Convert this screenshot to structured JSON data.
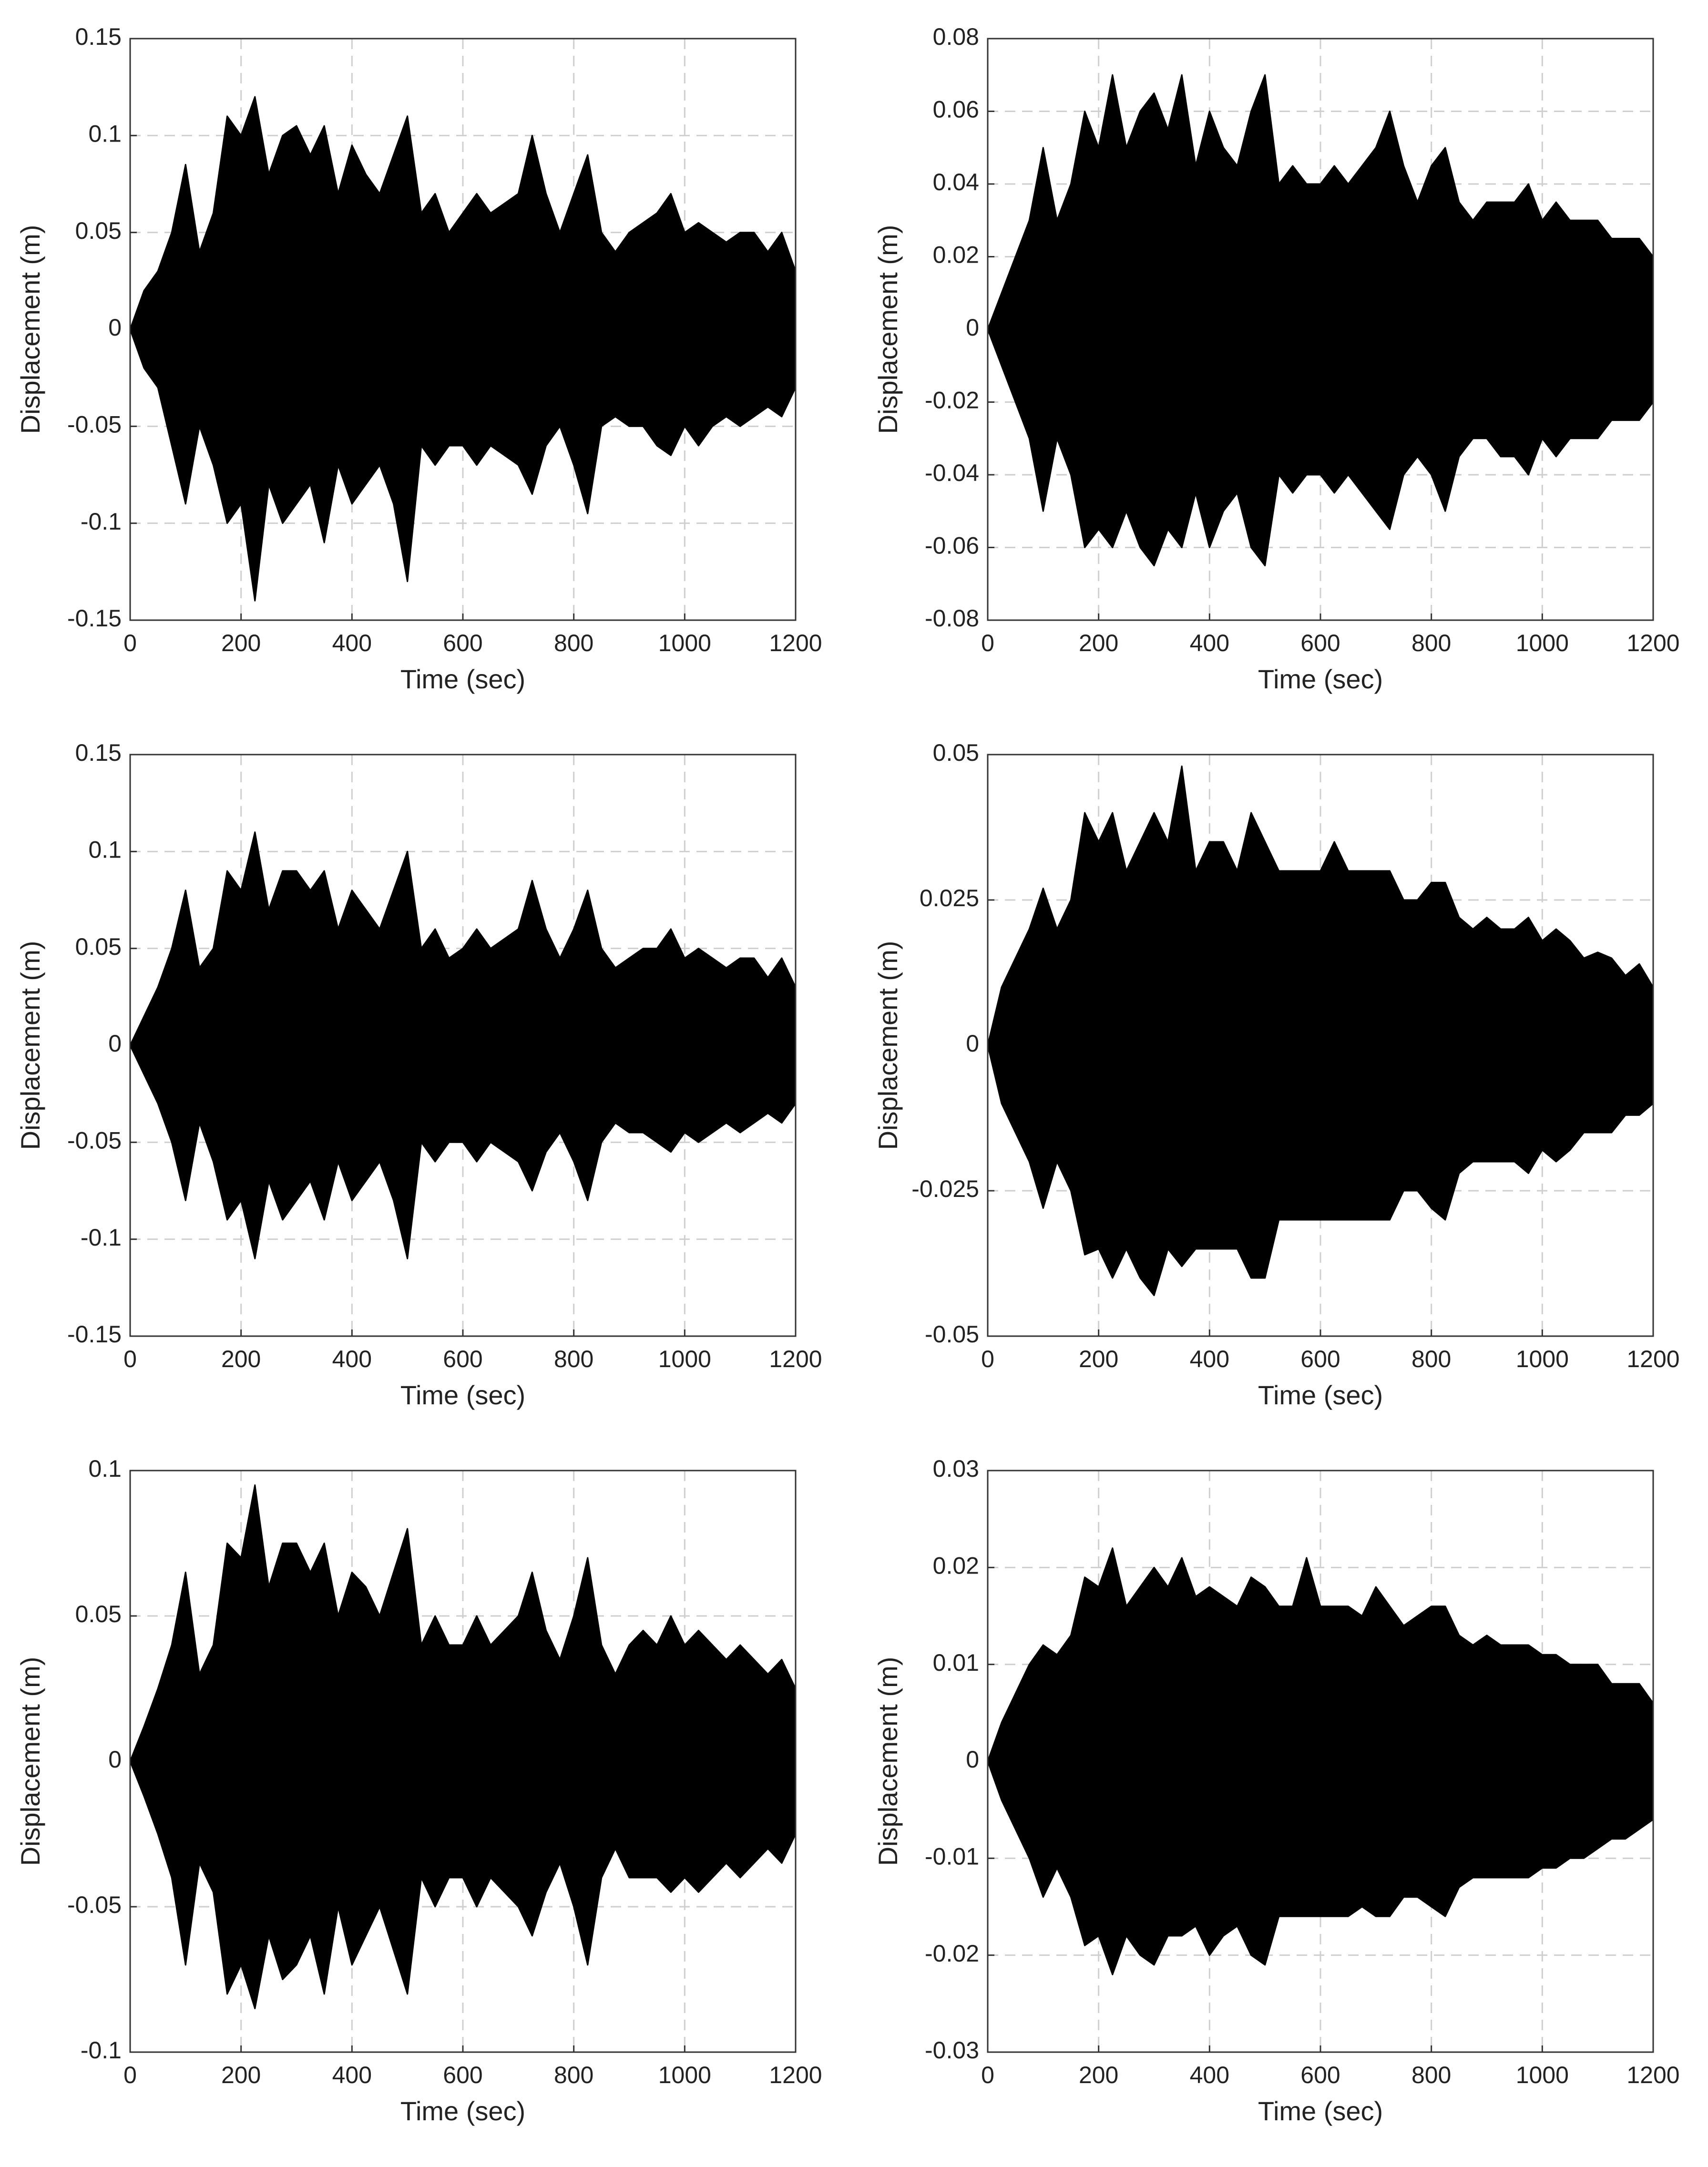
{
  "chart_data": [
    {
      "type": "area",
      "xlabel": "Time (sec)",
      "ylabel": "Displacement (m)",
      "grid": true,
      "xlim": [
        0,
        1200
      ],
      "xticks": [
        0,
        200,
        400,
        600,
        800,
        1000,
        1200
      ],
      "ylim": [
        -0.15,
        0.15
      ],
      "yticks": [
        -0.15,
        -0.1,
        -0.05,
        0,
        0.05,
        0.1,
        0.15
      ],
      "x": [
        0,
        25,
        50,
        75,
        100,
        125,
        150,
        175,
        200,
        225,
        250,
        275,
        300,
        325,
        350,
        375,
        400,
        425,
        450,
        475,
        500,
        525,
        550,
        575,
        600,
        625,
        650,
        675,
        700,
        725,
        750,
        775,
        800,
        825,
        850,
        875,
        900,
        925,
        950,
        975,
        1000,
        1025,
        1050,
        1075,
        1100,
        1125,
        1150,
        1175,
        1200
      ],
      "series": [
        {
          "color": "#000000",
          "values": [
            0,
            0.02,
            0.03,
            0.05,
            0.085,
            0.04,
            0.06,
            0.11,
            0.1,
            0.12,
            0.08,
            0.1,
            0.105,
            0.09,
            0.105,
            0.07,
            0.095,
            0.08,
            0.07,
            0.09,
            0.11,
            0.06,
            0.07,
            0.05,
            0.06,
            0.07,
            0.06,
            0.065,
            0.07,
            0.1,
            0.07,
            0.05,
            0.07,
            0.09,
            0.05,
            0.04,
            0.05,
            0.055,
            0.06,
            0.07,
            0.05,
            0.055,
            0.05,
            0.045,
            0.05,
            0.05,
            0.04,
            0.05,
            0.03
          ]
        },
        {
          "color": "#000000",
          "values": [
            0,
            -0.02,
            -0.03,
            -0.06,
            -0.09,
            -0.05,
            -0.07,
            -0.1,
            -0.09,
            -0.14,
            -0.08,
            -0.1,
            -0.09,
            -0.08,
            -0.11,
            -0.07,
            -0.09,
            -0.08,
            -0.07,
            -0.09,
            -0.13,
            -0.06,
            -0.07,
            -0.06,
            -0.06,
            -0.07,
            -0.06,
            -0.065,
            -0.07,
            -0.085,
            -0.06,
            -0.05,
            -0.07,
            -0.095,
            -0.05,
            -0.045,
            -0.05,
            -0.05,
            -0.06,
            -0.065,
            -0.05,
            -0.06,
            -0.05,
            -0.045,
            -0.05,
            -0.045,
            -0.04,
            -0.045,
            -0.03
          ]
        }
      ]
    },
    {
      "type": "area",
      "xlabel": "Time (sec)",
      "ylabel": "Displacement (m)",
      "grid": true,
      "xlim": [
        0,
        1200
      ],
      "xticks": [
        0,
        200,
        400,
        600,
        800,
        1000,
        1200
      ],
      "ylim": [
        -0.08,
        0.08
      ],
      "yticks": [
        -0.08,
        -0.06,
        -0.04,
        -0.02,
        0,
        0.02,
        0.04,
        0.06,
        0.08
      ],
      "x": [
        0,
        25,
        50,
        75,
        100,
        125,
        150,
        175,
        200,
        225,
        250,
        275,
        300,
        325,
        350,
        375,
        400,
        425,
        450,
        475,
        500,
        525,
        550,
        575,
        600,
        625,
        650,
        675,
        700,
        725,
        750,
        775,
        800,
        825,
        850,
        875,
        900,
        925,
        950,
        975,
        1000,
        1025,
        1050,
        1075,
        1100,
        1125,
        1150,
        1175,
        1200
      ],
      "series": [
        {
          "color": "#000000",
          "values": [
            0,
            0.01,
            0.02,
            0.03,
            0.05,
            0.03,
            0.04,
            0.06,
            0.05,
            0.07,
            0.05,
            0.06,
            0.065,
            0.055,
            0.07,
            0.045,
            0.06,
            0.05,
            0.045,
            0.06,
            0.07,
            0.04,
            0.045,
            0.04,
            0.04,
            0.045,
            0.04,
            0.045,
            0.05,
            0.06,
            0.045,
            0.035,
            0.045,
            0.05,
            0.035,
            0.03,
            0.035,
            0.035,
            0.035,
            0.04,
            0.03,
            0.035,
            0.03,
            0.03,
            0.03,
            0.025,
            0.025,
            0.025,
            0.02
          ]
        },
        {
          "color": "#000000",
          "values": [
            0,
            -0.01,
            -0.02,
            -0.03,
            -0.05,
            -0.03,
            -0.04,
            -0.06,
            -0.055,
            -0.06,
            -0.05,
            -0.06,
            -0.065,
            -0.055,
            -0.06,
            -0.045,
            -0.06,
            -0.05,
            -0.045,
            -0.06,
            -0.065,
            -0.04,
            -0.045,
            -0.04,
            -0.04,
            -0.045,
            -0.04,
            -0.045,
            -0.05,
            -0.055,
            -0.04,
            -0.035,
            -0.04,
            -0.05,
            -0.035,
            -0.03,
            -0.03,
            -0.035,
            -0.035,
            -0.04,
            -0.03,
            -0.035,
            -0.03,
            -0.03,
            -0.03,
            -0.025,
            -0.025,
            -0.025,
            -0.02
          ]
        }
      ]
    },
    {
      "type": "area",
      "xlabel": "Time (sec)",
      "ylabel": "Displacement (m)",
      "grid": true,
      "xlim": [
        0,
        1200
      ],
      "xticks": [
        0,
        200,
        400,
        600,
        800,
        1000,
        1200
      ],
      "ylim": [
        -0.15,
        0.15
      ],
      "yticks": [
        -0.15,
        -0.1,
        -0.05,
        0,
        0.05,
        0.1,
        0.15
      ],
      "x": [
        0,
        25,
        50,
        75,
        100,
        125,
        150,
        175,
        200,
        225,
        250,
        275,
        300,
        325,
        350,
        375,
        400,
        425,
        450,
        475,
        500,
        525,
        550,
        575,
        600,
        625,
        650,
        675,
        700,
        725,
        750,
        775,
        800,
        825,
        850,
        875,
        900,
        925,
        950,
        975,
        1000,
        1025,
        1050,
        1075,
        1100,
        1125,
        1150,
        1175,
        1200
      ],
      "series": [
        {
          "color": "#000000",
          "values": [
            0,
            0.015,
            0.03,
            0.05,
            0.08,
            0.04,
            0.05,
            0.09,
            0.08,
            0.11,
            0.07,
            0.09,
            0.09,
            0.08,
            0.09,
            0.06,
            0.08,
            0.07,
            0.06,
            0.08,
            0.1,
            0.05,
            0.06,
            0.045,
            0.05,
            0.06,
            0.05,
            0.055,
            0.06,
            0.085,
            0.06,
            0.045,
            0.06,
            0.08,
            0.05,
            0.04,
            0.045,
            0.05,
            0.05,
            0.06,
            0.045,
            0.05,
            0.045,
            0.04,
            0.045,
            0.045,
            0.035,
            0.045,
            0.03
          ]
        },
        {
          "color": "#000000",
          "values": [
            0,
            -0.015,
            -0.03,
            -0.05,
            -0.08,
            -0.04,
            -0.06,
            -0.09,
            -0.08,
            -0.11,
            -0.07,
            -0.09,
            -0.08,
            -0.07,
            -0.09,
            -0.06,
            -0.08,
            -0.07,
            -0.06,
            -0.08,
            -0.11,
            -0.05,
            -0.06,
            -0.05,
            -0.05,
            -0.06,
            -0.05,
            -0.055,
            -0.06,
            -0.075,
            -0.055,
            -0.045,
            -0.06,
            -0.08,
            -0.05,
            -0.04,
            -0.045,
            -0.045,
            -0.05,
            -0.055,
            -0.045,
            -0.05,
            -0.045,
            -0.04,
            -0.045,
            -0.04,
            -0.035,
            -0.04,
            -0.03
          ]
        }
      ]
    },
    {
      "type": "area",
      "xlabel": "Time (sec)",
      "ylabel": "Displacement (m)",
      "grid": true,
      "xlim": [
        0,
        1200
      ],
      "xticks": [
        0,
        200,
        400,
        600,
        800,
        1000,
        1200
      ],
      "ylim": [
        -0.05,
        0.05
      ],
      "yticks": [
        -0.05,
        -0.025,
        0,
        0.025,
        0.05
      ],
      "x": [
        0,
        25,
        50,
        75,
        100,
        125,
        150,
        175,
        200,
        225,
        250,
        275,
        300,
        325,
        350,
        375,
        400,
        425,
        450,
        475,
        500,
        525,
        550,
        575,
        600,
        625,
        650,
        675,
        700,
        725,
        750,
        775,
        800,
        825,
        850,
        875,
        900,
        925,
        950,
        975,
        1000,
        1025,
        1050,
        1075,
        1100,
        1125,
        1150,
        1175,
        1200
      ],
      "series": [
        {
          "color": "#000000",
          "values": [
            0,
            0.01,
            0.015,
            0.02,
            0.027,
            0.02,
            0.025,
            0.04,
            0.035,
            0.04,
            0.03,
            0.035,
            0.04,
            0.035,
            0.048,
            0.03,
            0.035,
            0.035,
            0.03,
            0.04,
            0.035,
            0.03,
            0.03,
            0.03,
            0.03,
            0.035,
            0.03,
            0.03,
            0.03,
            0.03,
            0.025,
            0.025,
            0.028,
            0.028,
            0.022,
            0.02,
            0.022,
            0.02,
            0.02,
            0.022,
            0.018,
            0.02,
            0.018,
            0.015,
            0.016,
            0.015,
            0.012,
            0.014,
            0.01
          ]
        },
        {
          "color": "#000000",
          "values": [
            0,
            -0.01,
            -0.015,
            -0.02,
            -0.028,
            -0.02,
            -0.025,
            -0.036,
            -0.035,
            -0.04,
            -0.035,
            -0.04,
            -0.043,
            -0.035,
            -0.038,
            -0.035,
            -0.035,
            -0.035,
            -0.035,
            -0.04,
            -0.04,
            -0.03,
            -0.03,
            -0.03,
            -0.03,
            -0.03,
            -0.03,
            -0.03,
            -0.03,
            -0.03,
            -0.025,
            -0.025,
            -0.028,
            -0.03,
            -0.022,
            -0.02,
            -0.02,
            -0.02,
            -0.02,
            -0.022,
            -0.018,
            -0.02,
            -0.018,
            -0.015,
            -0.015,
            -0.015,
            -0.012,
            -0.012,
            -0.01
          ]
        }
      ]
    },
    {
      "type": "area",
      "xlabel": "Time (sec)",
      "ylabel": "Displacement (m)",
      "grid": true,
      "xlim": [
        0,
        1200
      ],
      "xticks": [
        0,
        200,
        400,
        600,
        800,
        1000,
        1200
      ],
      "ylim": [
        -0.1,
        0.1
      ],
      "yticks": [
        -0.1,
        -0.05,
        0,
        0.05,
        0.1
      ],
      "x": [
        0,
        25,
        50,
        75,
        100,
        125,
        150,
        175,
        200,
        225,
        250,
        275,
        300,
        325,
        350,
        375,
        400,
        425,
        450,
        475,
        500,
        525,
        550,
        575,
        600,
        625,
        650,
        675,
        700,
        725,
        750,
        775,
        800,
        825,
        850,
        875,
        900,
        925,
        950,
        975,
        1000,
        1025,
        1050,
        1075,
        1100,
        1125,
        1150,
        1175,
        1200
      ],
      "series": [
        {
          "color": "#000000",
          "values": [
            0,
            0.012,
            0.025,
            0.04,
            0.065,
            0.03,
            0.04,
            0.075,
            0.07,
            0.095,
            0.06,
            0.075,
            0.075,
            0.065,
            0.075,
            0.05,
            0.065,
            0.06,
            0.05,
            0.065,
            0.08,
            0.04,
            0.05,
            0.04,
            0.04,
            0.05,
            0.04,
            0.045,
            0.05,
            0.065,
            0.045,
            0.035,
            0.05,
            0.07,
            0.04,
            0.03,
            0.04,
            0.045,
            0.04,
            0.05,
            0.04,
            0.045,
            0.04,
            0.035,
            0.04,
            0.035,
            0.03,
            0.035,
            0.025
          ]
        },
        {
          "color": "#000000",
          "values": [
            0,
            -0.012,
            -0.025,
            -0.04,
            -0.07,
            -0.035,
            -0.045,
            -0.08,
            -0.07,
            -0.085,
            -0.06,
            -0.075,
            -0.07,
            -0.06,
            -0.08,
            -0.05,
            -0.07,
            -0.06,
            -0.05,
            -0.065,
            -0.08,
            -0.04,
            -0.05,
            -0.04,
            -0.04,
            -0.05,
            -0.04,
            -0.045,
            -0.05,
            -0.06,
            -0.045,
            -0.035,
            -0.05,
            -0.07,
            -0.04,
            -0.03,
            -0.04,
            -0.04,
            -0.04,
            -0.045,
            -0.04,
            -0.045,
            -0.04,
            -0.035,
            -0.04,
            -0.035,
            -0.03,
            -0.035,
            -0.025
          ]
        }
      ]
    },
    {
      "type": "area",
      "xlabel": "Time (sec)",
      "ylabel": "Displacement (m)",
      "grid": true,
      "xlim": [
        0,
        1200
      ],
      "xticks": [
        0,
        200,
        400,
        600,
        800,
        1000,
        1200
      ],
      "ylim": [
        -0.03,
        0.03
      ],
      "yticks": [
        -0.03,
        -0.02,
        -0.01,
        0,
        0.01,
        0.02,
        0.03
      ],
      "x": [
        0,
        25,
        50,
        75,
        100,
        125,
        150,
        175,
        200,
        225,
        250,
        275,
        300,
        325,
        350,
        375,
        400,
        425,
        450,
        475,
        500,
        525,
        550,
        575,
        600,
        625,
        650,
        675,
        700,
        725,
        750,
        775,
        800,
        825,
        850,
        875,
        900,
        925,
        950,
        975,
        1000,
        1025,
        1050,
        1075,
        1100,
        1125,
        1150,
        1175,
        1200
      ],
      "series": [
        {
          "color": "#000000",
          "values": [
            0,
            0.004,
            0.007,
            0.01,
            0.012,
            0.011,
            0.013,
            0.019,
            0.018,
            0.022,
            0.016,
            0.018,
            0.02,
            0.018,
            0.021,
            0.017,
            0.018,
            0.017,
            0.016,
            0.019,
            0.018,
            0.016,
            0.016,
            0.021,
            0.016,
            0.016,
            0.016,
            0.015,
            0.018,
            0.016,
            0.014,
            0.015,
            0.016,
            0.016,
            0.013,
            0.012,
            0.013,
            0.012,
            0.012,
            0.012,
            0.011,
            0.011,
            0.01,
            0.01,
            0.01,
            0.008,
            0.008,
            0.008,
            0.006
          ]
        },
        {
          "color": "#000000",
          "values": [
            0,
            -0.004,
            -0.007,
            -0.01,
            -0.014,
            -0.011,
            -0.014,
            -0.019,
            -0.018,
            -0.022,
            -0.018,
            -0.02,
            -0.021,
            -0.018,
            -0.018,
            -0.017,
            -0.02,
            -0.018,
            -0.017,
            -0.02,
            -0.021,
            -0.016,
            -0.016,
            -0.016,
            -0.016,
            -0.016,
            -0.016,
            -0.015,
            -0.016,
            -0.016,
            -0.014,
            -0.014,
            -0.015,
            -0.016,
            -0.013,
            -0.012,
            -0.012,
            -0.012,
            -0.012,
            -0.012,
            -0.011,
            -0.011,
            -0.01,
            -0.01,
            -0.009,
            -0.008,
            -0.008,
            -0.007,
            -0.006
          ]
        }
      ]
    }
  ]
}
